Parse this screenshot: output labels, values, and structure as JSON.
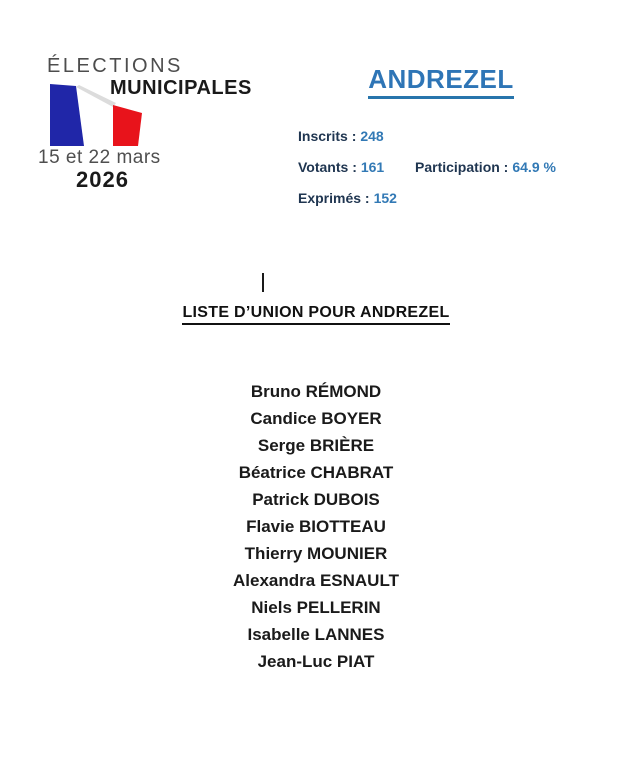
{
  "page": {
    "background_color": "#ffffff"
  },
  "logo": {
    "line1": "ÉLECTIONS",
    "line2": "MUNICIPALES",
    "dates": "15 et 22 mars",
    "year": "2026",
    "flag_colors": {
      "blue": "#2026a8",
      "band": "#dcdcdc",
      "red": "#e8131b"
    }
  },
  "header": {
    "commune": "ANDREZEL",
    "title_color": "#2e75b6"
  },
  "stats": {
    "inscrits_label": "Inscrits :",
    "inscrits_value": "248",
    "votants_label": "Votants :",
    "votants_value": "161",
    "participation_label": "Participation :",
    "participation_value": "64.9 %",
    "exprimes_label": "Exprimés :",
    "exprimes_value": "152",
    "label_color": "#1f3550",
    "value_color": "#3279b5"
  },
  "list": {
    "title": "LISTE D’UNION POUR ANDREZEL",
    "candidates": [
      "Bruno RÉMOND",
      "Candice BOYER",
      "Serge BRIÈRE",
      "Béatrice CHABRAT",
      "Patrick DUBOIS",
      "Flavie BIOTTEAU",
      "Thierry MOUNIER",
      "Alexandra ESNAULT",
      "Niels PELLERIN",
      "Isabelle LANNES",
      "Jean-Luc PIAT"
    ]
  }
}
